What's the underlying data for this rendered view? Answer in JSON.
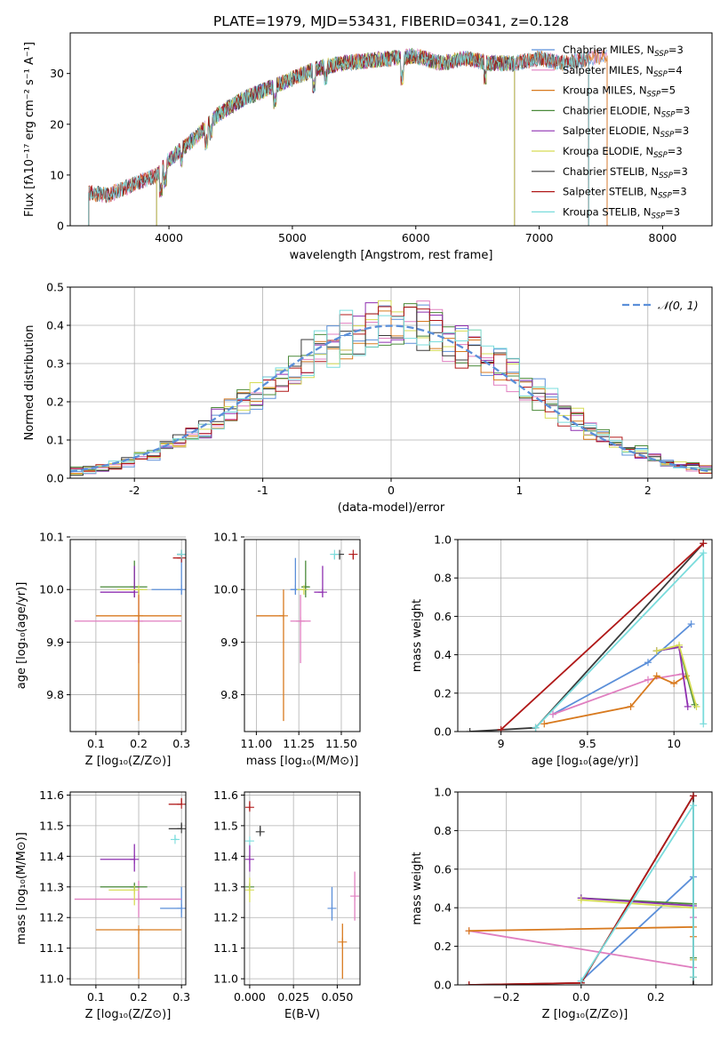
{
  "title": "PLATE=1979, MJD=53431, FIBERID=0341, z=0.128",
  "colors": {
    "Chabrier MILES": "#5b8fd9",
    "Salpeter MILES": "#e07fc0",
    "Kroupa MILES": "#d87a1f",
    "Chabrier ELODIE": "#4a8a3a",
    "Salpeter ELODIE": "#8e2fb0",
    "Kroupa ELODIE": "#d6dc55",
    "Chabrier STELIB": "#3a3a3a",
    "Salpeter STELIB": "#b01818",
    "Kroupa STELIB": "#7adcdc",
    "normal": "#5b8fd9"
  },
  "chart_data": [
    {
      "id": "spectrum",
      "type": "line",
      "xlabel": "wavelength [Angstrom, rest frame]",
      "ylabel": "Flux [fλ10⁻¹⁷ erg cm⁻² s⁻¹ A⁻¹]",
      "xlim": [
        3200,
        8400
      ],
      "ylim": [
        0,
        38
      ],
      "xticks": [
        4000,
        5000,
        6000,
        7000,
        8000
      ],
      "yticks": [
        0,
        10,
        20,
        30
      ],
      "grid": false,
      "legend_position": "right",
      "legend": [
        "Chabrier MILES, N_SSP=3",
        "Salpeter MILES, N_SSP=4",
        "Kroupa MILES, N_SSP=5",
        "Chabrier ELODIE, N_SSP=3",
        "Salpeter ELODIE, N_SSP=3",
        "Kroupa ELODIE, N_SSP=3",
        "Chabrier STELIB, N_SSP=3",
        "Salpeter STELIB, N_SSP=3",
        "Kroupa STELIB, N_SSP=3"
      ],
      "continuum": [
        [
          3350,
          6.5
        ],
        [
          3500,
          6.0
        ],
        [
          3700,
          8
        ],
        [
          3900,
          10
        ],
        [
          4000,
          13
        ],
        [
          4200,
          17
        ],
        [
          4400,
          22
        ],
        [
          4600,
          25
        ],
        [
          4800,
          27
        ],
        [
          5000,
          29
        ],
        [
          5200,
          31
        ],
        [
          5400,
          32
        ],
        [
          5600,
          32.5
        ],
        [
          5800,
          33
        ],
        [
          6000,
          33.5
        ],
        [
          6200,
          32
        ],
        [
          6400,
          33
        ],
        [
          6600,
          32
        ],
        [
          6800,
          32
        ],
        [
          7000,
          33
        ],
        [
          7200,
          32
        ],
        [
          7400,
          33
        ],
        [
          7550,
          33.5
        ]
      ],
      "series_ranges": [
        {
          "name": "Chabrier MILES",
          "x": [
            3350,
            7550
          ]
        },
        {
          "name": "Salpeter MILES",
          "x": [
            3350,
            7550
          ]
        },
        {
          "name": "Kroupa MILES",
          "x": [
            3350,
            7550
          ]
        },
        {
          "name": "Chabrier ELODIE",
          "x": [
            3900,
            6800
          ]
        },
        {
          "name": "Salpeter ELODIE",
          "x": [
            3900,
            6800
          ]
        },
        {
          "name": "Kroupa ELODIE",
          "x": [
            3900,
            6800
          ]
        },
        {
          "name": "Chabrier STELIB",
          "x": [
            3350,
            7400
          ]
        },
        {
          "name": "Salpeter STELIB",
          "x": [
            3350,
            7400
          ]
        },
        {
          "name": "Kroupa STELIB",
          "x": [
            3350,
            7400
          ]
        }
      ]
    },
    {
      "id": "histogram",
      "type": "step",
      "xlabel": "(data-model)/error",
      "ylabel": "Normed distribution",
      "xlim": [
        -2.5,
        2.5
      ],
      "ylim": [
        0,
        0.5
      ],
      "xticks": [
        -2,
        -1,
        0,
        1,
        2
      ],
      "yticks": [
        0.0,
        0.1,
        0.2,
        0.3,
        0.4,
        0.5
      ],
      "grid": true,
      "legend": [
        "𝒩(0, 1)"
      ],
      "legend_position": "top-right",
      "bin_width": 0.1
    },
    {
      "id": "age_vs_Z",
      "type": "errorbar",
      "xlabel": "Z [log₁₀(Z/Z⊙)]",
      "ylabel": "age  [log₁₀(age/yr)]",
      "xlim": [
        0.04,
        0.31
      ],
      "ylim": [
        9.73,
        10.095
      ],
      "xticks": [
        0.1,
        0.2,
        0.3
      ],
      "yticks": [
        9.8,
        9.9,
        10.0,
        10.1
      ],
      "grid": true,
      "points": [
        {
          "name": "Chabrier MILES",
          "x": 0.3,
          "xerr": [
            0.07,
            0.0
          ],
          "y": 10.0,
          "yerr": [
            0.01,
            0.06
          ]
        },
        {
          "name": "Salpeter MILES",
          "x": 0.2,
          "xerr": [
            0.15,
            0.1
          ],
          "y": 9.94,
          "yerr": [
            0.08,
            0.06
          ]
        },
        {
          "name": "Kroupa MILES",
          "x": 0.2,
          "xerr": [
            0.1,
            0.1
          ],
          "y": 9.95,
          "yerr": [
            0.2,
            0.05
          ]
        },
        {
          "name": "Chabrier ELODIE",
          "x": 0.19,
          "xerr": [
            0.08,
            0.03
          ],
          "y": 10.005,
          "yerr": [
            0.02,
            0.05
          ]
        },
        {
          "name": "Salpeter ELODIE",
          "x": 0.19,
          "xerr": [
            0.08,
            0.0
          ],
          "y": 9.995,
          "yerr": [
            0.01,
            0.05
          ]
        },
        {
          "name": "Kroupa ELODIE",
          "x": 0.2,
          "xerr": [
            0.05,
            0.02
          ],
          "y": 10.0,
          "yerr": [
            0.01,
            0.0
          ]
        },
        {
          "name": "Chabrier STELIB",
          "x": 0.3,
          "xerr": [
            0.01,
            0.0
          ],
          "y": 10.067,
          "yerr": [
            0.0,
            0.0
          ]
        },
        {
          "name": "Salpeter STELIB",
          "x": 0.3,
          "xerr": [
            0.02,
            0.0
          ],
          "y": 10.06,
          "yerr": [
            0.0,
            0.005
          ]
        },
        {
          "name": "Kroupa STELIB",
          "x": 0.3,
          "xerr": [
            0.01,
            0.0
          ],
          "y": 10.067,
          "yerr": [
            0.0,
            0.0
          ]
        }
      ]
    },
    {
      "id": "age_vs_mass",
      "type": "errorbar",
      "xlabel": "mass [log₁₀(M/M⊙)]",
      "xlim": [
        10.93,
        11.61
      ],
      "ylim": [
        9.73,
        10.095
      ],
      "xticks": [
        11.0,
        11.25,
        11.5
      ],
      "xticklabels": [
        "11.00",
        "11.25",
        "11.50"
      ],
      "yticks": [
        9.8,
        9.9,
        10.0,
        10.1
      ],
      "grid": true,
      "points": [
        {
          "name": "Chabrier MILES",
          "x": 11.23,
          "xerr": [
            0.03,
            0.07
          ],
          "y": 10.0,
          "yerr": [
            0.01,
            0.06
          ]
        },
        {
          "name": "Salpeter MILES",
          "x": 11.26,
          "xerr": [
            0.06,
            0.06
          ],
          "y": 9.94,
          "yerr": [
            0.08,
            0.05
          ]
        },
        {
          "name": "Kroupa MILES",
          "x": 11.16,
          "xerr": [
            0.16,
            0.0
          ],
          "y": 9.95,
          "yerr": [
            0.2,
            0.05
          ]
        },
        {
          "name": "Chabrier ELODIE",
          "x": 11.29,
          "xerr": [
            0.02,
            0.02
          ],
          "y": 10.005,
          "yerr": [
            0.02,
            0.05
          ]
        },
        {
          "name": "Salpeter ELODIE",
          "x": 11.39,
          "xerr": [
            0.05,
            0.0
          ],
          "y": 9.995,
          "yerr": [
            0.01,
            0.05
          ]
        },
        {
          "name": "Kroupa ELODIE",
          "x": 11.28,
          "xerr": [
            0.04,
            0.0
          ],
          "y": 10.0,
          "yerr": [
            0.01,
            0.0
          ]
        },
        {
          "name": "Chabrier STELIB",
          "x": 11.49,
          "xerr": [
            0.0,
            0.0
          ],
          "y": 10.067,
          "yerr": [
            0.01,
            0.0
          ]
        },
        {
          "name": "Salpeter STELIB",
          "x": 11.57,
          "xerr": [
            0.0,
            0.0
          ],
          "y": 10.067,
          "yerr": [
            0.01,
            0.0
          ]
        },
        {
          "name": "Kroupa STELIB",
          "x": 11.46,
          "xerr": [
            0.0,
            0.0
          ],
          "y": 10.067,
          "yerr": [
            0.01,
            0.0
          ]
        }
      ]
    },
    {
      "id": "weight_vs_age",
      "type": "line",
      "xlabel": "age  [log₁₀(age/yr)]",
      "ylabel": "mass weight",
      "xlim": [
        8.75,
        10.22
      ],
      "ylim": [
        0.0,
        1.0
      ],
      "xticks": [
        9.0,
        9.5,
        10.0
      ],
      "yticks": [
        0.0,
        0.2,
        0.4,
        0.6,
        0.8,
        1.0
      ],
      "grid": true,
      "series": [
        {
          "name": "Chabrier MILES",
          "x": [
            9.3,
            9.85,
            10.1
          ],
          "y": [
            0.09,
            0.36,
            0.56
          ]
        },
        {
          "name": "Salpeter MILES",
          "x": [
            9.3,
            9.85,
            10.05
          ],
          "y": [
            0.09,
            0.27,
            0.3
          ]
        },
        {
          "name": "Kroupa MILES",
          "x": [
            9.25,
            9.75,
            9.9,
            10.0,
            10.07
          ],
          "y": [
            0.04,
            0.13,
            0.29,
            0.25,
            0.29
          ]
        },
        {
          "name": "Chabrier ELODIE",
          "x": [
            9.9,
            10.03,
            10.12
          ],
          "y": [
            0.42,
            0.44,
            0.14
          ]
        },
        {
          "name": "Salpeter ELODIE",
          "x": [
            9.9,
            10.03,
            10.08
          ],
          "y": [
            0.42,
            0.44,
            0.13
          ]
        },
        {
          "name": "Kroupa ELODIE",
          "x": [
            9.9,
            10.03,
            10.13
          ],
          "y": [
            0.42,
            0.45,
            0.13
          ]
        },
        {
          "name": "Chabrier STELIB",
          "x": [
            8.82,
            9.2,
            10.17
          ],
          "y": [
            0.0,
            0.02,
            0.98
          ]
        },
        {
          "name": "Salpeter STELIB",
          "x": [
            9.0,
            10.17
          ],
          "y": [
            0.01,
            0.98
          ]
        },
        {
          "name": "Kroupa STELIB",
          "x": [
            9.2,
            10.17,
            10.17
          ],
          "y": [
            0.02,
            0.93,
            0.04
          ]
        }
      ]
    },
    {
      "id": "mass_vs_Z",
      "type": "errorbar",
      "xlabel": "Z [log₁₀(Z/Z⊙)]",
      "ylabel": "mass [log₁₀(M/M⊙)]",
      "xlim": [
        0.04,
        0.31
      ],
      "ylim": [
        10.98,
        11.61
      ],
      "xticks": [
        0.1,
        0.2,
        0.3
      ],
      "yticks": [
        11.0,
        11.1,
        11.2,
        11.3,
        11.4,
        11.5,
        11.6
      ],
      "grid": true,
      "points": [
        {
          "name": "Chabrier MILES",
          "x": 0.3,
          "xerr": [
            0.05,
            0.0
          ],
          "y": 11.23,
          "yerr": [
            0.03,
            0.07
          ]
        },
        {
          "name": "Salpeter MILES",
          "x": 0.2,
          "xerr": [
            0.15,
            0.1
          ],
          "y": 11.26,
          "yerr": [
            0.06,
            0.06
          ]
        },
        {
          "name": "Kroupa MILES",
          "x": 0.2,
          "xerr": [
            0.1,
            0.1
          ],
          "y": 11.16,
          "yerr": [
            0.16,
            0.0
          ]
        },
        {
          "name": "Chabrier ELODIE",
          "x": 0.19,
          "xerr": [
            0.08,
            0.03
          ],
          "y": 11.3,
          "yerr": [
            0.01,
            0.01
          ]
        },
        {
          "name": "Salpeter ELODIE",
          "x": 0.19,
          "xerr": [
            0.08,
            0.0
          ],
          "y": 11.39,
          "yerr": [
            0.04,
            0.05
          ]
        },
        {
          "name": "Kroupa ELODIE",
          "x": 0.19,
          "xerr": [
            0.06,
            0.0
          ],
          "y": 11.29,
          "yerr": [
            0.05,
            0.0
          ]
        },
        {
          "name": "Chabrier STELIB",
          "x": 0.3,
          "xerr": [
            0.03,
            0.0
          ],
          "y": 11.49,
          "yerr": [
            0.0,
            0.02
          ]
        },
        {
          "name": "Salpeter STELIB",
          "x": 0.3,
          "xerr": [
            0.03,
            0.0
          ],
          "y": 11.57,
          "yerr": [
            0.0,
            0.02
          ]
        },
        {
          "name": "Kroupa STELIB",
          "x": 0.285,
          "xerr": [
            0.0,
            0.005
          ],
          "y": 11.455,
          "yerr": [
            0.0,
            0.015
          ]
        }
      ]
    },
    {
      "id": "mass_vs_ebv",
      "type": "errorbar",
      "xlabel": "E(B-V)",
      "xlim": [
        -0.003,
        0.063
      ],
      "ylim": [
        10.98,
        11.61
      ],
      "xticks": [
        0.0,
        0.025,
        0.05
      ],
      "xticklabels": [
        "0.000",
        "0.025",
        "0.050"
      ],
      "yticks": [
        11.0,
        11.1,
        11.2,
        11.3,
        11.4,
        11.5,
        11.6
      ],
      "grid": true,
      "points": [
        {
          "name": "Chabrier MILES",
          "x": 0.047,
          "y": 11.23,
          "yerr": [
            0.04,
            0.07
          ]
        },
        {
          "name": "Salpeter MILES",
          "x": 0.06,
          "y": 11.27,
          "yerr": [
            0.08,
            0.08
          ]
        },
        {
          "name": "Kroupa MILES",
          "x": 0.053,
          "y": 11.12,
          "yerr": [
            0.12,
            0.06
          ]
        },
        {
          "name": "Chabrier ELODIE",
          "x": 0.0,
          "y": 11.3,
          "yerr": [
            0.01,
            0.01
          ]
        },
        {
          "name": "Salpeter ELODIE",
          "x": 0.0,
          "y": 11.39,
          "yerr": [
            0.04,
            0.05
          ]
        },
        {
          "name": "Kroupa ELODIE",
          "x": 0.0,
          "y": 11.29,
          "yerr": [
            0.04,
            0.04
          ]
        },
        {
          "name": "Chabrier STELIB",
          "x": 0.006,
          "y": 11.48,
          "yerr": [
            0.01,
            0.02
          ]
        },
        {
          "name": "Salpeter STELIB",
          "x": 0.0,
          "y": 11.56,
          "yerr": [
            0.01,
            0.02
          ]
        },
        {
          "name": "Kroupa STELIB",
          "x": 0.0,
          "y": 11.45,
          "yerr": [
            0.0,
            0.0
          ]
        }
      ]
    },
    {
      "id": "weight_vs_Z",
      "type": "line",
      "xlabel": "Z [log₁₀(Z/Z⊙)]",
      "ylabel": "mass weight",
      "xlim": [
        -0.33,
        0.35
      ],
      "ylim": [
        0.0,
        1.0
      ],
      "xticks": [
        -0.2,
        0.0,
        0.2
      ],
      "xticklabels": [
        "−0.2",
        "0.0",
        "0.2"
      ],
      "yticks": [
        0.0,
        0.2,
        0.4,
        0.6,
        0.8,
        1.0
      ],
      "grid": true,
      "series": [
        {
          "name": "Chabrier MILES",
          "x": [
            0.0,
            0.3,
            0.3
          ],
          "y": [
            0.02,
            0.56,
            0.35
          ]
        },
        {
          "name": "Salpeter MILES",
          "x": [
            -0.3,
            0.3,
            0.3
          ],
          "y": [
            0.28,
            0.09,
            0.35
          ]
        },
        {
          "name": "Kroupa MILES",
          "x": [
            -0.3,
            0.3,
            0.3,
            0.3
          ],
          "y": [
            0.28,
            0.3,
            0.25,
            0.04
          ]
        },
        {
          "name": "Chabrier ELODIE",
          "x": [
            0.0,
            0.3,
            0.3
          ],
          "y": [
            0.45,
            0.42,
            0.14
          ]
        },
        {
          "name": "Salpeter ELODIE",
          "x": [
            0.0,
            0.3,
            0.3
          ],
          "y": [
            0.45,
            0.41,
            0.13
          ]
        },
        {
          "name": "Kroupa ELODIE",
          "x": [
            0.0,
            0.3,
            0.3
          ],
          "y": [
            0.44,
            0.4,
            0.13
          ]
        },
        {
          "name": "Chabrier STELIB",
          "x": [
            -0.3,
            0.0,
            0.3,
            0.3
          ],
          "y": [
            0.0,
            0.01,
            0.98,
            0.0
          ]
        },
        {
          "name": "Salpeter STELIB",
          "x": [
            -0.3,
            0.0,
            0.3
          ],
          "y": [
            0.0,
            0.01,
            0.98
          ]
        },
        {
          "name": "Kroupa STELIB",
          "x": [
            0.0,
            0.3,
            0.3
          ],
          "y": [
            0.02,
            0.93,
            0.04
          ]
        }
      ]
    }
  ]
}
